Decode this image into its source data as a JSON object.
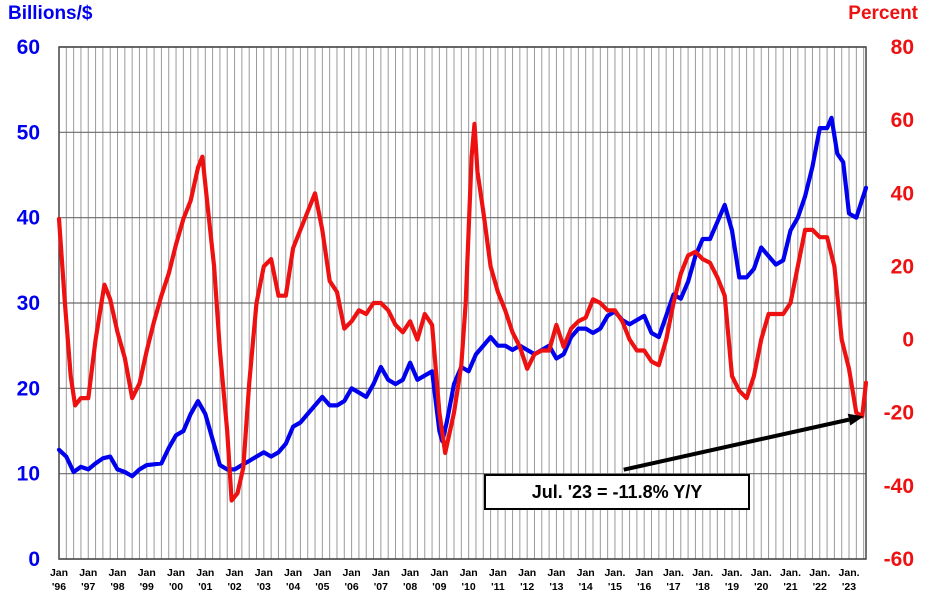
{
  "chart_data": {
    "type": "line",
    "left_axis_title": "Billions/$",
    "right_axis_title": "Percent",
    "y_left_lim": [
      0,
      60
    ],
    "y_left_ticks": [
      "0",
      "10",
      "20",
      "30",
      "40",
      "50",
      "60"
    ],
    "y_right_lim": [
      -60,
      80
    ],
    "y_right_ticks": [
      "-60",
      "-40",
      "-20",
      "0",
      "20",
      "40",
      "60",
      "80"
    ],
    "x_range": [
      1996.0,
      2023.58
    ],
    "x_ticks": [
      {
        "x": 1996,
        "l1": "Jan",
        "l2": "'96"
      },
      {
        "x": 1997,
        "l1": "Jan",
        "l2": "'97"
      },
      {
        "x": 1998,
        "l1": "Jan",
        "l2": "'98"
      },
      {
        "x": 1999,
        "l1": "Jan",
        "l2": "'99"
      },
      {
        "x": 2000,
        "l1": "Jan",
        "l2": "'00"
      },
      {
        "x": 2001,
        "l1": "Jan",
        "l2": "'01"
      },
      {
        "x": 2002,
        "l1": "Jan",
        "l2": "'02"
      },
      {
        "x": 2003,
        "l1": "Jan",
        "l2": "'03"
      },
      {
        "x": 2004,
        "l1": "Jan",
        "l2": "'04"
      },
      {
        "x": 2005,
        "l1": "Jan",
        "l2": "'05"
      },
      {
        "x": 2006,
        "l1": "Jan",
        "l2": "'06"
      },
      {
        "x": 2007,
        "l1": "Jan",
        "l2": "'07"
      },
      {
        "x": 2008,
        "l1": "Jan",
        "l2": "'08"
      },
      {
        "x": 2009,
        "l1": "Jan",
        "l2": "'09"
      },
      {
        "x": 2010,
        "l1": "Jan",
        "l2": "'10"
      },
      {
        "x": 2011,
        "l1": "Jan",
        "l2": "'11"
      },
      {
        "x": 2012,
        "l1": "Jan",
        "l2": "'12"
      },
      {
        "x": 2013,
        "l1": "Jan",
        "l2": "'13"
      },
      {
        "x": 2014,
        "l1": "Jan",
        "l2": "'14"
      },
      {
        "x": 2015,
        "l1": "Jan.",
        "l2": "'15"
      },
      {
        "x": 2016,
        "l1": "Jan",
        "l2": "'16"
      },
      {
        "x": 2017,
        "l1": "Jan.",
        "l2": "'17"
      },
      {
        "x": 2018,
        "l1": "Jan.",
        "l2": "'18"
      },
      {
        "x": 2019,
        "l1": "Jan.",
        "l2": "'19"
      },
      {
        "x": 2020,
        "l1": "Jan.",
        "l2": "'20"
      },
      {
        "x": 2021,
        "l1": "Jan.",
        "l2": "'21"
      },
      {
        "x": 2022,
        "l1": "Jan.",
        "l2": "'22"
      },
      {
        "x": 2023,
        "l1": "Jan.",
        "l2": "'23"
      }
    ],
    "grid": true,
    "series": [
      {
        "color": "#0000ee",
        "axis": "left",
        "points": [
          [
            1996.0,
            12.8
          ],
          [
            1996.25,
            12.0
          ],
          [
            1996.5,
            10.2
          ],
          [
            1996.75,
            10.8
          ],
          [
            1997.0,
            10.5
          ],
          [
            1997.25,
            11.2
          ],
          [
            1997.5,
            11.8
          ],
          [
            1997.75,
            12.0
          ],
          [
            1998.0,
            10.5
          ],
          [
            1998.25,
            10.2
          ],
          [
            1998.5,
            9.7
          ],
          [
            1998.75,
            10.5
          ],
          [
            1999.0,
            11.0
          ],
          [
            1999.25,
            11.1
          ],
          [
            1999.5,
            11.2
          ],
          [
            1999.75,
            13.0
          ],
          [
            2000.0,
            14.5
          ],
          [
            2000.25,
            15.0
          ],
          [
            2000.5,
            17.0
          ],
          [
            2000.75,
            18.5
          ],
          [
            2001.0,
            17.0
          ],
          [
            2001.25,
            14.0
          ],
          [
            2001.5,
            11.0
          ],
          [
            2001.75,
            10.5
          ],
          [
            2002.0,
            10.5
          ],
          [
            2002.25,
            11.0
          ],
          [
            2002.5,
            11.5
          ],
          [
            2002.75,
            12.0
          ],
          [
            2003.0,
            12.5
          ],
          [
            2003.25,
            12.0
          ],
          [
            2003.5,
            12.5
          ],
          [
            2003.75,
            13.5
          ],
          [
            2004.0,
            15.5
          ],
          [
            2004.25,
            16.0
          ],
          [
            2004.5,
            17.0
          ],
          [
            2004.75,
            18.0
          ],
          [
            2005.0,
            19.0
          ],
          [
            2005.25,
            18.0
          ],
          [
            2005.5,
            18.0
          ],
          [
            2005.75,
            18.5
          ],
          [
            2006.0,
            20.0
          ],
          [
            2006.25,
            19.5
          ],
          [
            2006.5,
            19.0
          ],
          [
            2006.75,
            20.5
          ],
          [
            2007.0,
            22.5
          ],
          [
            2007.25,
            21.0
          ],
          [
            2007.5,
            20.5
          ],
          [
            2007.75,
            21.0
          ],
          [
            2008.0,
            23.0
          ],
          [
            2008.25,
            21.0
          ],
          [
            2008.5,
            21.5
          ],
          [
            2008.75,
            22.0
          ],
          [
            2009.0,
            15.0
          ],
          [
            2009.1,
            13.8
          ],
          [
            2009.25,
            16.0
          ],
          [
            2009.5,
            20.5
          ],
          [
            2009.75,
            22.5
          ],
          [
            2010.0,
            22.0
          ],
          [
            2010.25,
            24.0
          ],
          [
            2010.5,
            25.0
          ],
          [
            2010.75,
            26.0
          ],
          [
            2011.0,
            25.0
          ],
          [
            2011.25,
            25.0
          ],
          [
            2011.5,
            24.5
          ],
          [
            2011.75,
            25.0
          ],
          [
            2012.0,
            24.5
          ],
          [
            2012.25,
            24.0
          ],
          [
            2012.5,
            24.5
          ],
          [
            2012.75,
            25.0
          ],
          [
            2013.0,
            23.5
          ],
          [
            2013.25,
            24.0
          ],
          [
            2013.5,
            26.0
          ],
          [
            2013.75,
            27.0
          ],
          [
            2014.0,
            27.0
          ],
          [
            2014.25,
            26.5
          ],
          [
            2014.5,
            27.0
          ],
          [
            2014.75,
            28.5
          ],
          [
            2015.0,
            29.0
          ],
          [
            2015.25,
            28.0
          ],
          [
            2015.5,
            27.5
          ],
          [
            2015.75,
            28.0
          ],
          [
            2016.0,
            28.5
          ],
          [
            2016.25,
            26.5
          ],
          [
            2016.5,
            26.0
          ],
          [
            2016.75,
            28.5
          ],
          [
            2017.0,
            31.0
          ],
          [
            2017.25,
            30.5
          ],
          [
            2017.5,
            32.5
          ],
          [
            2017.75,
            35.5
          ],
          [
            2018.0,
            37.5
          ],
          [
            2018.25,
            37.5
          ],
          [
            2018.5,
            39.5
          ],
          [
            2018.75,
            41.5
          ],
          [
            2019.0,
            38.5
          ],
          [
            2019.25,
            33.0
          ],
          [
            2019.5,
            33.0
          ],
          [
            2019.75,
            34.0
          ],
          [
            2020.0,
            36.5
          ],
          [
            2020.25,
            35.5
          ],
          [
            2020.5,
            34.5
          ],
          [
            2020.75,
            35.0
          ],
          [
            2021.0,
            38.5
          ],
          [
            2021.25,
            40.0
          ],
          [
            2021.5,
            42.5
          ],
          [
            2021.75,
            46.0
          ],
          [
            2022.0,
            50.5
          ],
          [
            2022.25,
            50.5
          ],
          [
            2022.4,
            51.7
          ],
          [
            2022.6,
            47.5
          ],
          [
            2022.8,
            46.5
          ],
          [
            2023.0,
            40.5
          ],
          [
            2023.25,
            40.0
          ],
          [
            2023.58,
            43.5
          ]
        ]
      },
      {
        "color": "#ee1111",
        "axis": "right",
        "points": [
          [
            1996.0,
            33.0
          ],
          [
            1996.2,
            10.0
          ],
          [
            1996.4,
            -10.0
          ],
          [
            1996.55,
            -18.0
          ],
          [
            1996.75,
            -16.0
          ],
          [
            1997.0,
            -16.0
          ],
          [
            1997.25,
            0.0
          ],
          [
            1997.55,
            15.0
          ],
          [
            1997.75,
            11.0
          ],
          [
            1998.0,
            2.0
          ],
          [
            1998.25,
            -5.0
          ],
          [
            1998.5,
            -16.0
          ],
          [
            1998.75,
            -12.0
          ],
          [
            1999.0,
            -3.0
          ],
          [
            1999.25,
            5.0
          ],
          [
            1999.5,
            12.0
          ],
          [
            1999.75,
            18.0
          ],
          [
            2000.0,
            26.0
          ],
          [
            2000.25,
            33.0
          ],
          [
            2000.5,
            38.0
          ],
          [
            2000.75,
            47.0
          ],
          [
            2000.9,
            50.0
          ],
          [
            2001.1,
            35.0
          ],
          [
            2001.3,
            20.0
          ],
          [
            2001.5,
            -3.0
          ],
          [
            2001.75,
            -25.0
          ],
          [
            2001.9,
            -44.0
          ],
          [
            2002.1,
            -42.0
          ],
          [
            2002.3,
            -35.0
          ],
          [
            2002.5,
            -12.0
          ],
          [
            2002.75,
            10.0
          ],
          [
            2003.0,
            20.0
          ],
          [
            2003.25,
            22.0
          ],
          [
            2003.5,
            12.0
          ],
          [
            2003.75,
            12.0
          ],
          [
            2004.0,
            25.0
          ],
          [
            2004.25,
            30.0
          ],
          [
            2004.5,
            35.0
          ],
          [
            2004.75,
            40.0
          ],
          [
            2005.0,
            30.0
          ],
          [
            2005.25,
            16.0
          ],
          [
            2005.5,
            13.0
          ],
          [
            2005.75,
            3.0
          ],
          [
            2006.0,
            5.0
          ],
          [
            2006.25,
            8.0
          ],
          [
            2006.5,
            7.0
          ],
          [
            2006.75,
            10.0
          ],
          [
            2007.0,
            10.0
          ],
          [
            2007.25,
            8.0
          ],
          [
            2007.5,
            4.0
          ],
          [
            2007.75,
            2.0
          ],
          [
            2008.0,
            5.0
          ],
          [
            2008.25,
            0.0
          ],
          [
            2008.5,
            7.0
          ],
          [
            2008.75,
            4.0
          ],
          [
            2009.0,
            -20.0
          ],
          [
            2009.2,
            -31.0
          ],
          [
            2009.5,
            -20.0
          ],
          [
            2009.75,
            -7.0
          ],
          [
            2009.9,
            10.0
          ],
          [
            2010.1,
            50.0
          ],
          [
            2010.2,
            59.0
          ],
          [
            2010.3,
            46.0
          ],
          [
            2010.5,
            35.0
          ],
          [
            2010.75,
            20.0
          ],
          [
            2011.0,
            13.0
          ],
          [
            2011.25,
            8.0
          ],
          [
            2011.5,
            2.0
          ],
          [
            2011.75,
            -2.0
          ],
          [
            2012.0,
            -8.0
          ],
          [
            2012.25,
            -4.0
          ],
          [
            2012.5,
            -3.0
          ],
          [
            2012.75,
            -3.0
          ],
          [
            2013.0,
            4.0
          ],
          [
            2013.25,
            -2.0
          ],
          [
            2013.5,
            3.0
          ],
          [
            2013.75,
            5.0
          ],
          [
            2014.0,
            6.0
          ],
          [
            2014.25,
            11.0
          ],
          [
            2014.5,
            10.0
          ],
          [
            2014.75,
            8.0
          ],
          [
            2015.0,
            8.0
          ],
          [
            2015.25,
            5.0
          ],
          [
            2015.5,
            0.0
          ],
          [
            2015.75,
            -3.0
          ],
          [
            2016.0,
            -3.0
          ],
          [
            2016.25,
            -6.0
          ],
          [
            2016.5,
            -7.0
          ],
          [
            2016.75,
            0.0
          ],
          [
            2017.0,
            10.0
          ],
          [
            2017.25,
            18.0
          ],
          [
            2017.5,
            23.0
          ],
          [
            2017.75,
            24.0
          ],
          [
            2018.0,
            22.0
          ],
          [
            2018.25,
            21.0
          ],
          [
            2018.5,
            17.0
          ],
          [
            2018.75,
            12.0
          ],
          [
            2019.0,
            -10.0
          ],
          [
            2019.25,
            -14.0
          ],
          [
            2019.5,
            -16.0
          ],
          [
            2019.75,
            -10.0
          ],
          [
            2020.0,
            0.0
          ],
          [
            2020.25,
            7.0
          ],
          [
            2020.5,
            7.0
          ],
          [
            2020.75,
            7.0
          ],
          [
            2021.0,
            10.0
          ],
          [
            2021.25,
            20.0
          ],
          [
            2021.5,
            30.0
          ],
          [
            2021.75,
            30.0
          ],
          [
            2022.0,
            28.0
          ],
          [
            2022.25,
            28.0
          ],
          [
            2022.5,
            20.0
          ],
          [
            2022.75,
            0.0
          ],
          [
            2023.0,
            -8.0
          ],
          [
            2023.25,
            -20.0
          ],
          [
            2023.45,
            -21.0
          ],
          [
            2023.58,
            -11.8
          ]
        ]
      }
    ],
    "annotation": {
      "text": "Jul. '23 = -11.8% Y/Y",
      "target_x": 2023.5,
      "target_y_right": -21.0,
      "box_anchor_x": 2015.3,
      "box_anchor_y_left": 10.0
    }
  }
}
